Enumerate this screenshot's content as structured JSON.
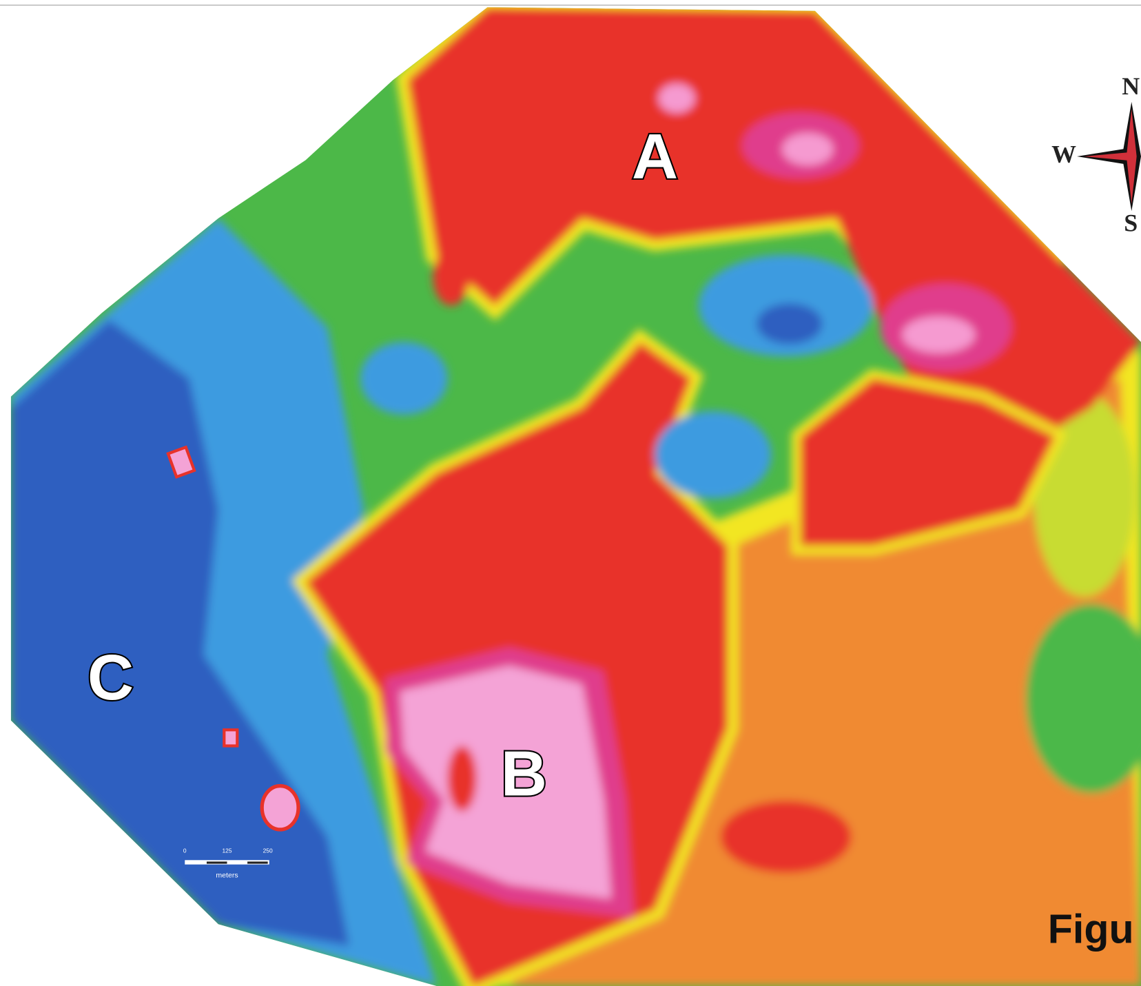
{
  "labels": {
    "a": "A",
    "b": "B",
    "c": "C"
  },
  "compass": {
    "north": "N",
    "west": "W",
    "south": "S"
  },
  "scale_bar": {
    "ticks": [
      "0",
      "125",
      "250"
    ],
    "unit": "meters"
  },
  "caption": "Figu"
}
